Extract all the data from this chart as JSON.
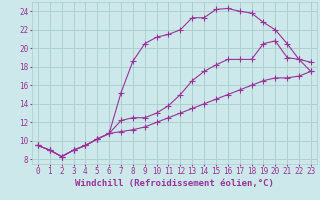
{
  "background_color": "#cce8ea",
  "grid_color": "#aacccc",
  "line_color": "#993399",
  "marker": "+",
  "markersize": 4,
  "linewidth": 0.8,
  "xlim": [
    -0.5,
    23.5
  ],
  "ylim": [
    7.5,
    25.0
  ],
  "xticks": [
    0,
    1,
    2,
    3,
    4,
    5,
    6,
    7,
    8,
    9,
    10,
    11,
    12,
    13,
    14,
    15,
    16,
    17,
    18,
    19,
    20,
    21,
    22,
    23
  ],
  "yticks": [
    8,
    10,
    12,
    14,
    16,
    18,
    20,
    22,
    24
  ],
  "xlabel": "Windchill (Refroidissement éolien,°C)",
  "xlabel_fontsize": 6.5,
  "tick_fontsize": 5.5,
  "curve1_x": [
    0,
    1,
    2,
    3,
    4,
    5,
    6,
    7,
    8,
    9,
    10,
    11,
    12,
    13,
    14,
    15,
    16,
    17,
    18,
    19,
    20,
    21,
    22,
    23
  ],
  "curve1_y": [
    9.5,
    9.0,
    8.3,
    9.0,
    9.5,
    10.2,
    10.8,
    15.2,
    18.6,
    20.5,
    21.2,
    21.5,
    22.0,
    23.3,
    23.3,
    24.2,
    24.3,
    24.0,
    23.8,
    22.8,
    22.0,
    20.5,
    18.8,
    18.5
  ],
  "curve2_x": [
    0,
    1,
    2,
    3,
    4,
    5,
    6,
    7,
    8,
    9,
    10,
    11,
    12,
    13,
    14,
    15,
    16,
    17,
    18,
    19,
    20,
    21,
    22,
    23
  ],
  "curve2_y": [
    9.5,
    9.0,
    8.3,
    9.0,
    9.5,
    10.2,
    10.8,
    12.2,
    12.5,
    12.5,
    13.0,
    13.8,
    15.0,
    16.5,
    17.5,
    18.2,
    18.8,
    18.8,
    18.8,
    20.5,
    20.8,
    19.0,
    18.8,
    17.5
  ],
  "curve3_x": [
    0,
    1,
    2,
    3,
    4,
    5,
    6,
    7,
    8,
    9,
    10,
    11,
    12,
    13,
    14,
    15,
    16,
    17,
    18,
    19,
    20,
    21,
    22,
    23
  ],
  "curve3_y": [
    9.5,
    9.0,
    8.3,
    9.0,
    9.5,
    10.2,
    10.8,
    11.0,
    11.2,
    11.5,
    12.0,
    12.5,
    13.0,
    13.5,
    14.0,
    14.5,
    15.0,
    15.5,
    16.0,
    16.5,
    16.8,
    16.8,
    17.0,
    17.5
  ]
}
